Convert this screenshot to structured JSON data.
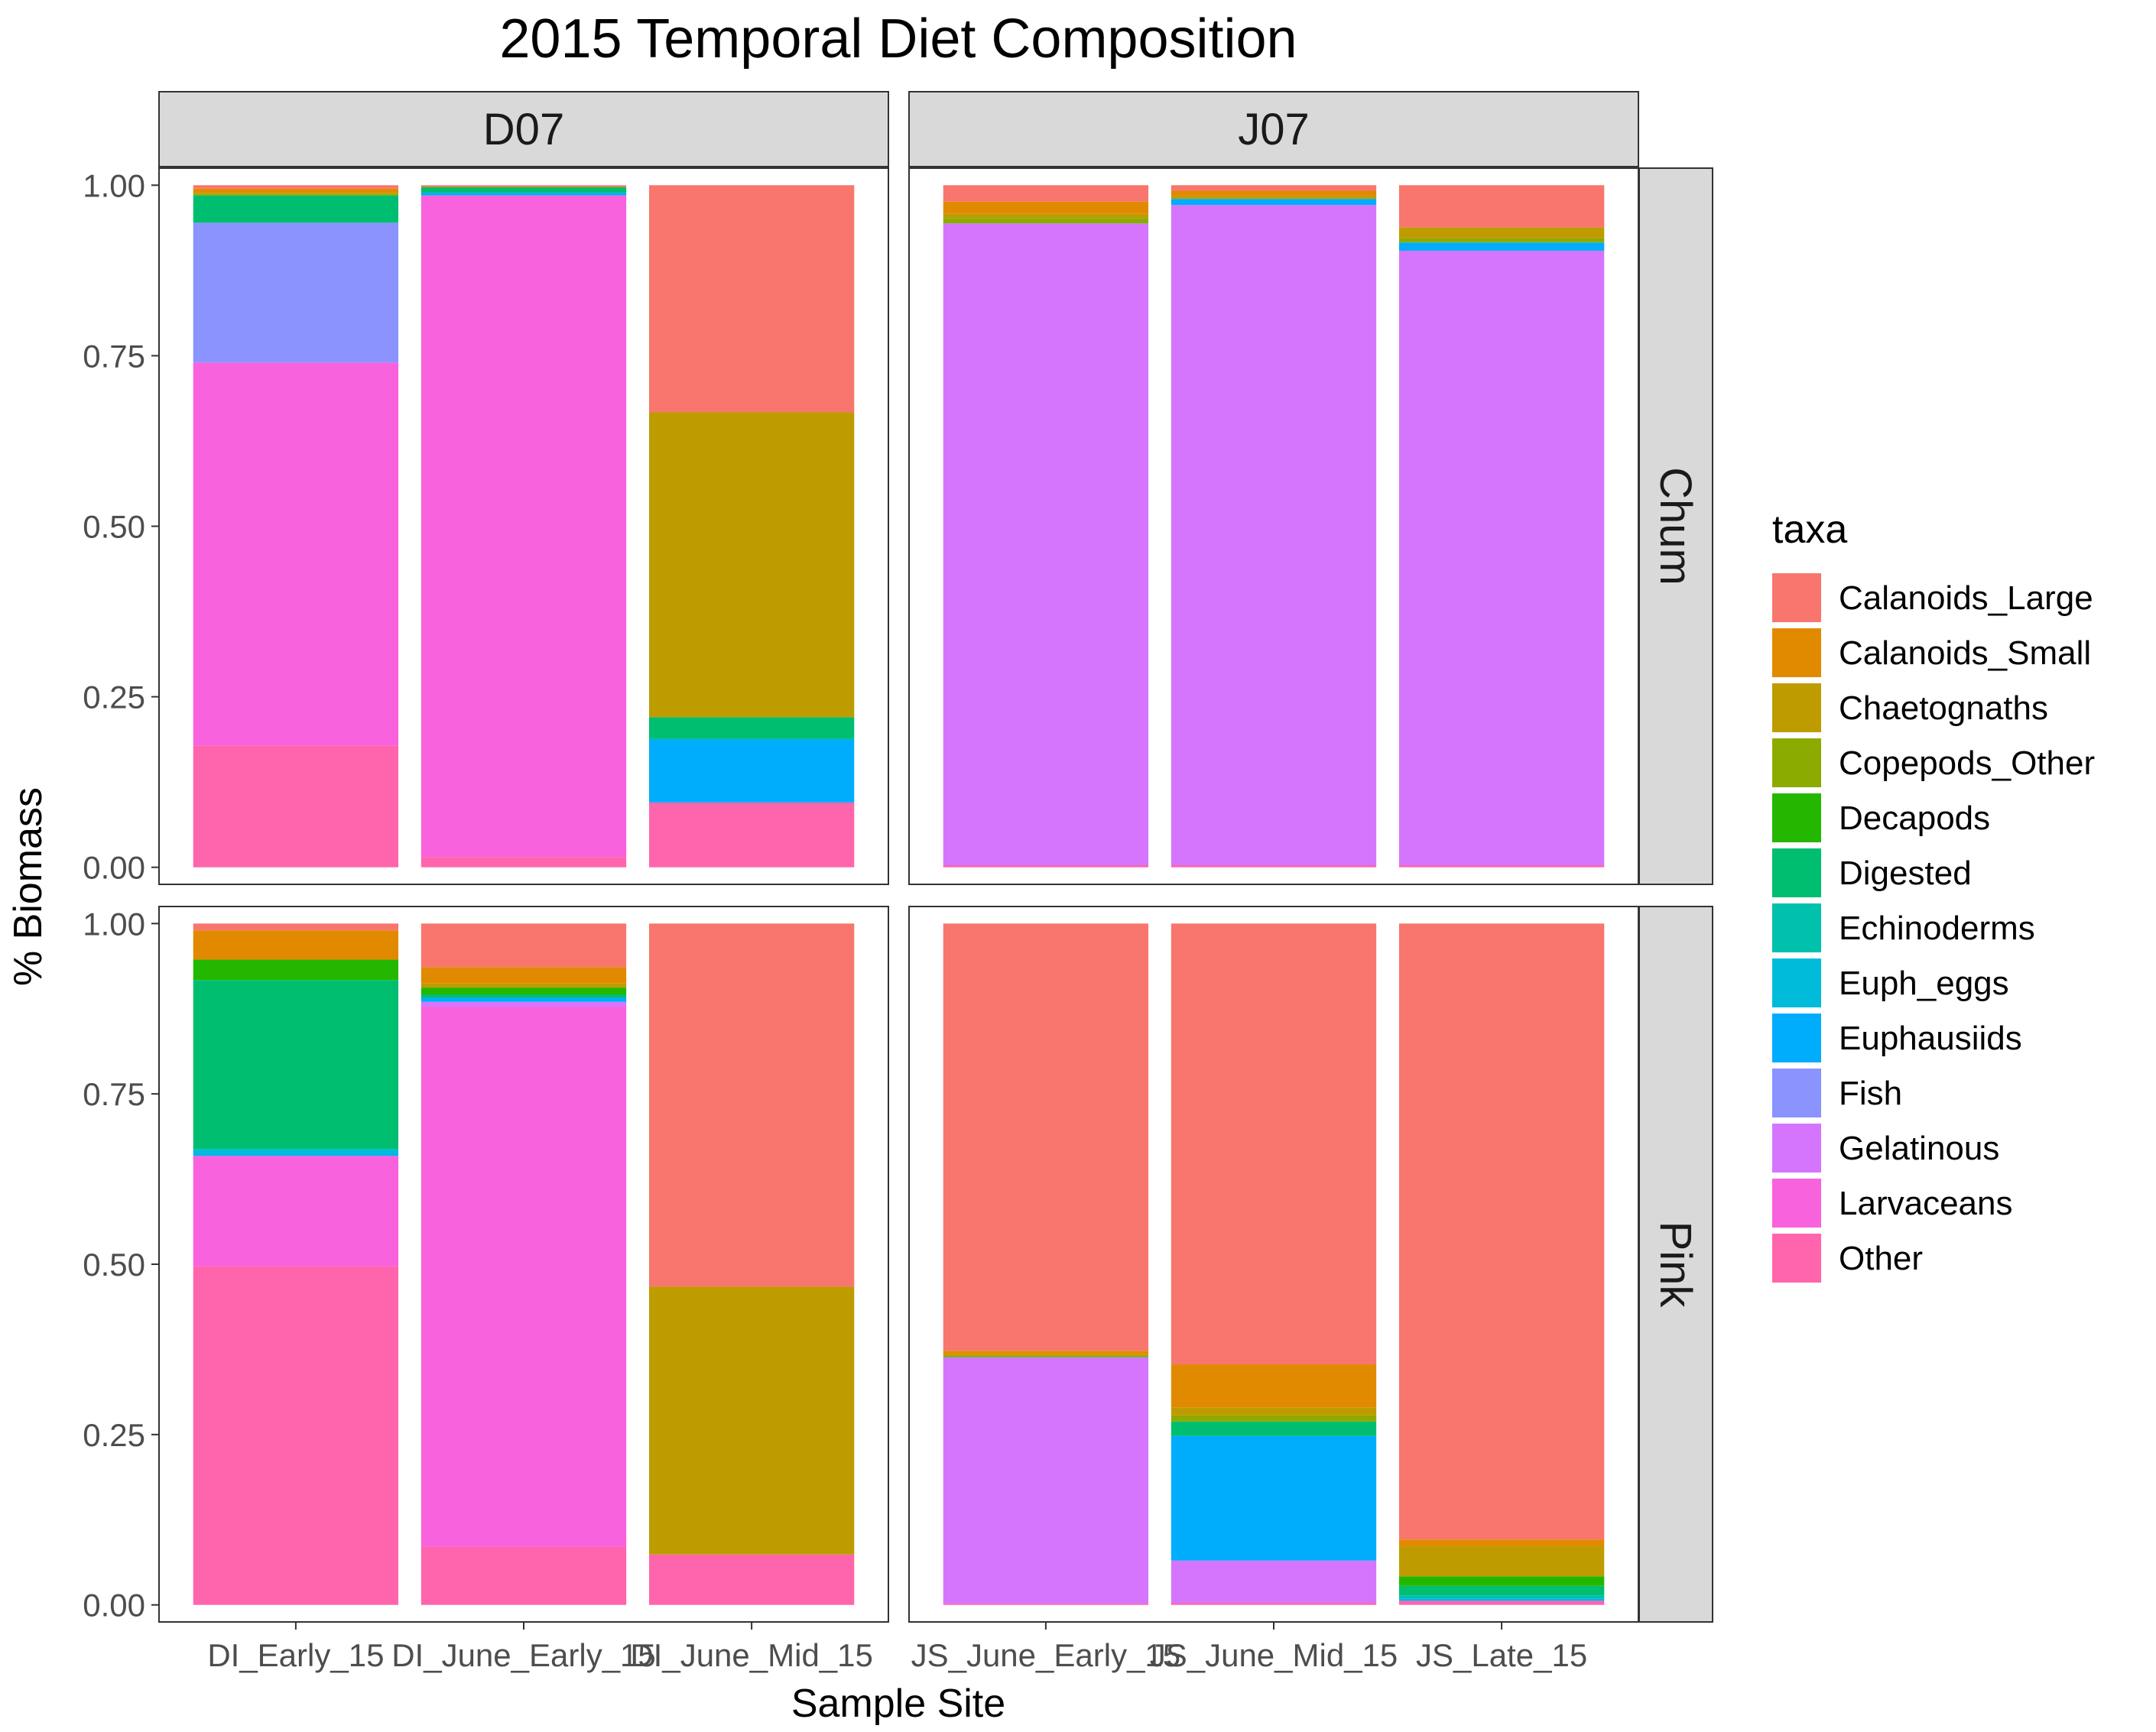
{
  "chart_data": {
    "type": "bar",
    "stacked": true,
    "title": "2015 Temporal Diet Composition",
    "xlabel": "Sample Site",
    "ylabel": "% Biomass",
    "ylim": [
      0,
      1
    ],
    "yticks": [
      "0.00",
      "0.25",
      "0.50",
      "0.75",
      "1.00"
    ],
    "legend_title": "taxa",
    "legend_position": "right",
    "grid": false,
    "column_facets": [
      "D07",
      "J07"
    ],
    "row_facets": [
      "Chum",
      "Pink"
    ],
    "taxa": [
      {
        "name": "Calanoids_Large",
        "color": "#F8766D"
      },
      {
        "name": "Calanoids_Small",
        "color": "#E18A00"
      },
      {
        "name": "Chaetognaths",
        "color": "#BE9C00"
      },
      {
        "name": "Copepods_Other",
        "color": "#8CAB00"
      },
      {
        "name": "Decapods",
        "color": "#24B700"
      },
      {
        "name": "Digested",
        "color": "#00BE70"
      },
      {
        "name": "Echinoderms",
        "color": "#00C1AB"
      },
      {
        "name": "Euph_eggs",
        "color": "#00BBDA"
      },
      {
        "name": "Euphausiids",
        "color": "#00ACFC"
      },
      {
        "name": "Fish",
        "color": "#8B93FF"
      },
      {
        "name": "Gelatinous",
        "color": "#D575FE"
      },
      {
        "name": "Larvaceans",
        "color": "#F962DD"
      },
      {
        "name": "Other",
        "color": "#FF65AC"
      }
    ],
    "panels": [
      {
        "column": "D07",
        "row": "Chum",
        "categories": [
          "DI_Early_15",
          "DI_June_Early_15",
          "DI_June_Mid_15"
        ],
        "bars": [
          {
            "Calanoids_Large": 0.005,
            "Calanoids_Small": 0.006,
            "Chaetognaths": 0.002,
            "Copepods_Other": 0.002,
            "Digested": 0.04,
            "Fish": 0.205,
            "Larvaceans": 0.562,
            "Other": 0.178
          },
          {
            "Calanoids_Large": 0.002,
            "Chaetognaths": 0.001,
            "Digested": 0.008,
            "Euphausiids": 0.004,
            "Larvaceans": 0.97,
            "Other": 0.015
          },
          {
            "Calanoids_Large": 0.333,
            "Chaetognaths": 0.447,
            "Digested": 0.032,
            "Euphausiids": 0.093,
            "Other": 0.095
          }
        ]
      },
      {
        "column": "J07",
        "row": "Chum",
        "categories": [
          "JS_June_Early_15",
          "JS_June_Mid_15",
          "JS_Late_15"
        ],
        "bars": [
          {
            "Calanoids_Large": 0.024,
            "Calanoids_Small": 0.018,
            "Chaetognaths": 0.006,
            "Copepods_Other": 0.008,
            "Gelatinous": 0.941,
            "Other": 0.003
          },
          {
            "Calanoids_Large": 0.008,
            "Calanoids_Small": 0.008,
            "Chaetognaths": 0.004,
            "Euphausiids": 0.009,
            "Gelatinous": 0.968,
            "Other": 0.003
          },
          {
            "Calanoids_Large": 0.062,
            "Chaetognaths": 0.016,
            "Copepods_Other": 0.006,
            "Euphausiids": 0.012,
            "Gelatinous": 0.901,
            "Other": 0.003
          }
        ]
      },
      {
        "column": "D07",
        "row": "Pink",
        "categories": [
          "DI_Early_15",
          "DI_June_Early_15",
          "DI_June_Mid_15"
        ],
        "bars": [
          {
            "Calanoids_Large": 0.01,
            "Calanoids_Small": 0.043,
            "Decapods": 0.03,
            "Digested": 0.248,
            "Euph_eggs": 0.008,
            "Euphausiids": 0.002,
            "Larvaceans": 0.162,
            "Other": 0.497
          },
          {
            "Calanoids_Large": 0.064,
            "Calanoids_Small": 0.024,
            "Chaetognaths": 0.006,
            "Decapods": 0.01,
            "Digested": 0.005,
            "Euphausiids": 0.006,
            "Gelatinous": 0.007,
            "Larvaceans": 0.793,
            "Other": 0.085
          },
          {
            "Calanoids_Large": 0.533,
            "Chaetognaths": 0.393,
            "Other": 0.074
          }
        ]
      },
      {
        "column": "J07",
        "row": "Pink",
        "categories": [
          "JS_June_Early_15",
          "JS_June_Mid_15",
          "JS_Late_15"
        ],
        "bars": [
          {
            "Calanoids_Large": 0.627,
            "Calanoids_Small": 0.005,
            "Chaetognaths": 0.004,
            "Digested": 0.001,
            "Gelatinous": 0.361,
            "Other": 0.002
          },
          {
            "Calanoids_Large": 0.647,
            "Calanoids_Small": 0.063,
            "Chaetognaths": 0.012,
            "Copepods_Other": 0.009,
            "Digested": 0.021,
            "Euphausiids": 0.183,
            "Gelatinous": 0.062,
            "Other": 0.003
          },
          {
            "Calanoids_Large": 0.904,
            "Calanoids_Small": 0.01,
            "Chaetognaths": 0.044,
            "Decapods": 0.014,
            "Digested": 0.014,
            "Echinoderms": 0.005,
            "Euphausiids": 0.003,
            "Other": 0.006
          }
        ]
      }
    ]
  }
}
